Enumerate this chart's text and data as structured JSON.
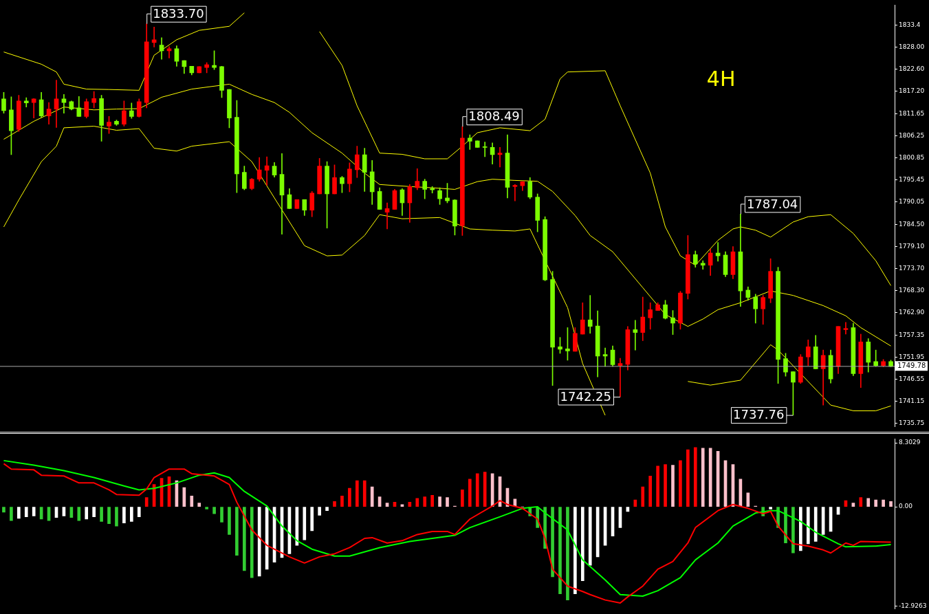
{
  "chart_data": [
    {
      "type": "candlestick",
      "categories": [
        null,
        null,
        null,
        null,
        null,
        null,
        null,
        null,
        null,
        null,
        null,
        null,
        null,
        null,
        null,
        null,
        null,
        null,
        null,
        null,
        null,
        null,
        null,
        null,
        null,
        null,
        null,
        null,
        null,
        null,
        null,
        null,
        null,
        null,
        null,
        null,
        null,
        null,
        null,
        null,
        null,
        null,
        null,
        null,
        null,
        null,
        null,
        null,
        null,
        null,
        null,
        null,
        null,
        null,
        null,
        null,
        null,
        null,
        null,
        null,
        null,
        null,
        null,
        null,
        null,
        null,
        null,
        null,
        null,
        null,
        null,
        null,
        null,
        null,
        null,
        null,
        null,
        null,
        null,
        null,
        null,
        null,
        null,
        null,
        null,
        null,
        null,
        null,
        null,
        null,
        null,
        null,
        null,
        null,
        null,
        null,
        null,
        null,
        null,
        null,
        null,
        null,
        null,
        null,
        null,
        null,
        null,
        null,
        null,
        null,
        null,
        null,
        null,
        null,
        null,
        null,
        null,
        null,
        null
      ],
      "ohlc": [
        [
          1815.3,
          1816.9,
          1811.8,
          1812.4
        ],
        [
          1812.6,
          1815.8,
          1801.6,
          1807.5
        ],
        [
          1807.8,
          1816.2,
          1807.3,
          1814.8
        ],
        [
          1814.8,
          1815.6,
          1813.3,
          1814.3
        ],
        [
          1814.4,
          1815.4,
          1810.6,
          1815.3
        ],
        [
          1815.1,
          1816.9,
          1810.8,
          1811.1
        ],
        [
          1811.1,
          1814.4,
          1809.1,
          1812.8
        ],
        [
          1812.8,
          1819.9,
          1808.3,
          1815.3
        ],
        [
          1815.3,
          1816.4,
          1811.8,
          1814.4
        ],
        [
          1814.6,
          1814.8,
          1812.6,
          1812.8
        ],
        [
          1813.1,
          1815.9,
          1811.0,
          1811.0
        ],
        [
          1811.0,
          1815.3,
          1810.6,
          1814.6
        ],
        [
          1814.4,
          1817.1,
          1813.1,
          1815.4
        ],
        [
          1815.4,
          1816.2,
          1804.9,
          1808.8
        ],
        [
          1808.6,
          1811.0,
          1806.8,
          1809.6
        ],
        [
          1809.8,
          1810.1,
          1808.8,
          1809.1
        ],
        [
          1809.1,
          1814.8,
          1808.6,
          1812.4
        ],
        [
          1812.4,
          1814.3,
          1810.5,
          1811.0
        ],
        [
          1811.0,
          1815.3,
          1810.8,
          1814.6
        ],
        [
          1814.4,
          1833.7,
          1813.1,
          1829.3
        ],
        [
          1829.1,
          1832.9,
          1828.0,
          1829.8
        ],
        [
          1828.5,
          1830.3,
          1825.0,
          1827.1
        ],
        [
          1827.1,
          1828.1,
          1825.3,
          1827.6
        ],
        [
          1827.6,
          1828.3,
          1823.3,
          1824.5
        ],
        [
          1824.7,
          1824.7,
          1821.5,
          1823.2
        ],
        [
          1823.3,
          1823.3,
          1821.2,
          1821.7
        ],
        [
          1821.7,
          1823.2,
          1821.7,
          1823.2
        ],
        [
          1823.0,
          1824.2,
          1821.7,
          1823.7
        ],
        [
          1823.5,
          1827.1,
          1822.5,
          1823.0
        ],
        [
          1823.2,
          1823.3,
          1815.6,
          1817.4
        ],
        [
          1817.6,
          1817.6,
          1808.2,
          1810.6
        ],
        [
          1810.8,
          1814.9,
          1792.3,
          1796.9
        ],
        [
          1797.3,
          1798.8,
          1793.0,
          1793.3
        ],
        [
          1793.3,
          1795.8,
          1793.0,
          1795.6
        ],
        [
          1795.6,
          1800.9,
          1795.1,
          1797.9
        ],
        [
          1797.8,
          1801.1,
          1794.1,
          1798.9
        ],
        [
          1798.8,
          1799.7,
          1796.1,
          1796.6
        ],
        [
          1796.8,
          1801.9,
          1782.1,
          1791.7
        ],
        [
          1791.8,
          1793.3,
          1788.4,
          1788.4
        ],
        [
          1788.4,
          1790.6,
          1788.4,
          1790.6
        ],
        [
          1790.6,
          1790.6,
          1786.7,
          1788.0
        ],
        [
          1788.0,
          1792.6,
          1786.4,
          1792.2
        ],
        [
          1792.0,
          1800.7,
          1792.0,
          1798.8
        ],
        [
          1798.8,
          1799.9,
          1783.6,
          1792.0
        ],
        [
          1792.0,
          1799.1,
          1792.0,
          1796.0
        ],
        [
          1796.0,
          1796.3,
          1792.3,
          1794.5
        ],
        [
          1794.5,
          1799.6,
          1792.5,
          1798.1
        ],
        [
          1797.9,
          1803.7,
          1796.0,
          1801.6
        ],
        [
          1801.6,
          1803.2,
          1792.6,
          1797.3
        ],
        [
          1797.4,
          1800.2,
          1789.4,
          1792.5
        ],
        [
          1792.6,
          1793.5,
          1788.2,
          1788.2
        ],
        [
          1787.5,
          1789.8,
          1783.4,
          1788.4
        ],
        [
          1788.2,
          1793.1,
          1788.2,
          1792.8
        ],
        [
          1793.0,
          1793.3,
          1786.7,
          1789.8
        ],
        [
          1789.8,
          1794.3,
          1785.0,
          1793.8
        ],
        [
          1793.5,
          1798.2,
          1793.0,
          1795.1
        ],
        [
          1795.1,
          1795.6,
          1790.8,
          1793.1
        ],
        [
          1793.3,
          1793.8,
          1792.2,
          1793.0
        ],
        [
          1792.8,
          1793.5,
          1789.4,
          1790.8
        ],
        [
          1791.0,
          1794.6,
          1789.8,
          1790.3
        ],
        [
          1790.5,
          1790.6,
          1781.9,
          1784.1
        ],
        [
          1784.2,
          1808.49,
          1781.8,
          1805.7
        ],
        [
          1805.7,
          1806.5,
          1802.9,
          1804.9
        ],
        [
          1805.0,
          1805.0,
          1803.4,
          1803.4
        ],
        [
          1803.5,
          1804.7,
          1801.1,
          1803.4
        ],
        [
          1803.4,
          1804.5,
          1799.3,
          1801.6
        ],
        [
          1801.6,
          1803.4,
          1798.6,
          1802.0
        ],
        [
          1802.0,
          1806.5,
          1791.0,
          1793.6
        ],
        [
          1793.8,
          1794.3,
          1790.3,
          1794.1
        ],
        [
          1794.0,
          1795.0,
          1792.8,
          1795.0
        ],
        [
          1795.0,
          1796.0,
          1790.8,
          1791.2
        ],
        [
          1791.2,
          1792.0,
          1782.7,
          1785.5
        ],
        [
          1785.7,
          1786.4,
          1770.7,
          1770.9
        ],
        [
          1771.0,
          1773.0,
          1745.0,
          1754.4
        ],
        [
          1754.5,
          1756.8,
          1752.9,
          1753.9
        ],
        [
          1754.0,
          1759.2,
          1751.2,
          1753.5
        ],
        [
          1753.4,
          1759.2,
          1753.4,
          1757.8
        ],
        [
          1757.6,
          1765.3,
          1757.6,
          1761.1
        ],
        [
          1761.1,
          1767.1,
          1757.8,
          1759.5
        ],
        [
          1759.6,
          1763.3,
          1747.1,
          1752.2
        ],
        [
          1752.6,
          1754.2,
          1749.7,
          1752.2
        ],
        [
          1753.7,
          1754.7,
          1749.7,
          1750.1
        ],
        [
          1749.9,
          1751.7,
          1742.25,
          1750.4
        ],
        [
          1750.2,
          1759.5,
          1748.8,
          1758.7
        ],
        [
          1758.7,
          1761.0,
          1753.7,
          1758.0
        ],
        [
          1758.0,
          1766.7,
          1756.0,
          1761.8
        ],
        [
          1761.6,
          1765.3,
          1758.8,
          1763.6
        ],
        [
          1763.4,
          1765.3,
          1763.4,
          1764.8
        ],
        [
          1764.8,
          1765.9,
          1761.3,
          1761.5
        ],
        [
          1761.6,
          1763.4,
          1757.5,
          1760.3
        ],
        [
          1760.3,
          1768.1,
          1758.8,
          1767.7
        ],
        [
          1767.6,
          1781.8,
          1766.2,
          1777.1
        ],
        [
          1777.1,
          1778.0,
          1774.0,
          1774.8
        ],
        [
          1775.0,
          1775.6,
          1773.5,
          1774.5
        ],
        [
          1774.5,
          1778.5,
          1772.0,
          1777.5
        ],
        [
          1777.5,
          1780.1,
          1775.5,
          1776.8
        ],
        [
          1777.0,
          1777.8,
          1771.7,
          1772.2
        ],
        [
          1772.2,
          1779.1,
          1771.2,
          1777.8
        ],
        [
          1777.8,
          1787.04,
          1764.4,
          1768.2
        ],
        [
          1768.4,
          1769.2,
          1765.9,
          1766.6
        ],
        [
          1766.7,
          1767.4,
          1760.3,
          1763.8
        ],
        [
          1763.8,
          1767.1,
          1760.0,
          1766.6
        ],
        [
          1766.4,
          1776.1,
          1765.3,
          1773.0
        ],
        [
          1773.0,
          1774.0,
          1745.5,
          1751.4
        ],
        [
          1751.6,
          1752.9,
          1747.3,
          1748.3
        ],
        [
          1748.4,
          1748.4,
          1737.76,
          1745.8
        ],
        [
          1745.8,
          1752.6,
          1745.5,
          1752.0
        ],
        [
          1752.0,
          1756.2,
          1749.9,
          1754.5
        ],
        [
          1754.5,
          1757.3,
          1749.1,
          1749.1
        ],
        [
          1749.1,
          1753.7,
          1740.2,
          1752.4
        ],
        [
          1752.4,
          1753.7,
          1745.6,
          1746.6
        ],
        [
          1749.7,
          1759.5,
          1747.9,
          1759.5
        ],
        [
          1758.7,
          1760.5,
          1757.6,
          1759.0
        ],
        [
          1759.2,
          1760.3,
          1747.4,
          1747.9
        ],
        [
          1747.9,
          1757.6,
          1744.5,
          1755.7
        ],
        [
          1755.7,
          1756.5,
          1748.3,
          1750.7
        ],
        [
          1750.9,
          1753.7,
          1749.7,
          1749.9
        ],
        [
          1749.9,
          1751.4,
          1749.6,
          1750.9
        ],
        [
          1750.9,
          1751.2,
          1749.6,
          1749.7
        ]
      ],
      "colors": [
        "#7cfc00",
        "#7cfc00",
        "#ff0000",
        "#7cfc00",
        "#ff0000",
        "#7cfc00",
        "#ff0000",
        "#ff0000",
        "#7cfc00",
        "#7cfc00",
        "#7cfc00",
        "#ff0000",
        "#ff0000",
        "#7cfc00",
        "#ff0000",
        "#7cfc00",
        "#ff0000",
        "#7cfc00",
        "#ff0000",
        "#ff0000",
        "#ff0000",
        "#7cfc00",
        "#ff0000",
        "#7cfc00",
        "#7cfc00",
        "#7cfc00",
        "#ff0000",
        "#ff0000",
        "#7cfc00",
        "#7cfc00",
        "#7cfc00",
        "#7cfc00",
        "#7cfc00",
        "#ff0000",
        "#ff0000",
        "#ff0000",
        "#7cfc00",
        "#7cfc00",
        "#7cfc00",
        "#ff0000",
        "#7cfc00",
        "#ff0000",
        "#ff0000",
        "#7cfc00",
        "#ff0000",
        "#7cfc00",
        "#ff0000",
        "#ff0000",
        "#7cfc00",
        "#7cfc00",
        "#7cfc00",
        "#ff0000",
        "#ff0000",
        "#7cfc00",
        "#ff0000",
        "#ff0000",
        "#7cfc00",
        "#7cfc00",
        "#7cfc00",
        "#7cfc00",
        "#7cfc00",
        "#ff0000",
        "#7cfc00",
        "#7cfc00",
        "#7cfc00",
        "#7cfc00",
        "#ff0000",
        "#7cfc00",
        "#ff0000",
        "#ff0000",
        "#7cfc00",
        "#7cfc00",
        "#7cfc00",
        "#7cfc00",
        "#7cfc00",
        "#7cfc00",
        "#ff0000",
        "#ff0000",
        "#7cfc00",
        "#7cfc00",
        "#7cfc00",
        "#7cfc00",
        "#ff0000",
        "#ff0000",
        "#7cfc00",
        "#ff0000",
        "#ff0000",
        "#ff0000",
        "#7cfc00",
        "#7cfc00",
        "#ff0000",
        "#ff0000",
        "#7cfc00",
        "#7cfc00",
        "#ff0000",
        "#7cfc00",
        "#7cfc00",
        "#ff0000",
        "#7cfc00",
        "#7cfc00",
        "#7cfc00",
        "#ff0000",
        "#ff0000",
        "#7cfc00",
        "#7cfc00",
        "#7cfc00",
        "#ff0000",
        "#ff0000",
        "#7cfc00",
        "#ff0000",
        "#7cfc00",
        "#ff0000",
        "#ff0000",
        "#7cfc00",
        "#ff0000",
        "#7cfc00",
        "#7cfc00",
        "#ff0000",
        "#7cfc00"
      ],
      "series": [
        {
          "type": "line",
          "color": "#ffff00",
          "values": [
            1826.8,
            null,
            null,
            null,
            null,
            1823.8,
            null,
            1821.9,
            1818.9,
            null,
            null,
            1817.7,
            null,
            null,
            1817.6,
            null,
            null,
            null,
            1817.4,
            null,
            1826.0,
            null,
            null,
            1829.8,
            null,
            null,
            1832.1,
            null,
            null,
            null,
            1833.1,
            null,
            1836.4,
            null,
            null,
            null,
            null,
            null,
            null,
            null,
            null,
            null,
            1831.8,
            null,
            null,
            1823.5,
            null,
            1813.6,
            null,
            null,
            1802.0,
            null,
            null,
            1801.7,
            null,
            null,
            1800.6,
            null,
            null,
            1800.6,
            null,
            1803.7,
            null,
            1807.0,
            null,
            null,
            1808.2,
            null,
            null,
            null,
            1807.5,
            null,
            1810.3,
            null,
            1820.2,
            1821.9,
            null,
            null,
            null,
            null,
            1822.2,
            null,
            1813.6,
            null,
            null,
            null,
            1797.1,
            null,
            1783.9,
            null,
            1776.8,
            null,
            1774.5,
            null,
            null,
            1780.6,
            null,
            1783.4,
            1783.9,
            null,
            1783.1,
            null,
            1781.4,
            null,
            null,
            1785.1,
            null,
            1786.4,
            null,
            null,
            1786.9,
            null,
            null,
            1782.3,
            null,
            null,
            1775.6,
            null,
            1769.5
          ]
        },
        {
          "type": "line",
          "color": "#ffff00",
          "values": [
            1805.4,
            null,
            null,
            null,
            1809.8,
            null,
            null,
            null,
            1813.3,
            null,
            null,
            null,
            1812.6,
            null,
            null,
            1812.8,
            null,
            null,
            1812.9,
            null,
            null,
            1815.7,
            null,
            null,
            null,
            1817.7,
            null,
            null,
            null,
            null,
            1818.9,
            null,
            null,
            1816.4,
            null,
            null,
            1814.4,
            null,
            1812.0,
            null,
            null,
            1807.0,
            null,
            null,
            null,
            1802.0,
            null,
            null,
            1797.1,
            null,
            1794.3,
            null,
            null,
            null,
            1793.8,
            null,
            null,
            1793.5,
            null,
            null,
            1793.1,
            null,
            null,
            1795.0,
            null,
            1795.6,
            null,
            null,
            1795.3,
            null,
            null,
            1795.1,
            null,
            1792.6,
            null,
            null,
            1786.7,
            null,
            1781.8,
            null,
            null,
            1777.8,
            null,
            null,
            null,
            1769.0,
            null,
            null,
            1762.4,
            null,
            null,
            1759.5,
            null,
            1761.3,
            null,
            1763.6,
            null,
            null,
            1765.3,
            null,
            null,
            null,
            1768.2,
            null,
            null,
            1767.1,
            null,
            null,
            null,
            1764.6,
            null,
            null,
            1762.1,
            null,
            1759.2,
            null,
            null,
            null,
            1754.7
          ]
        },
        {
          "type": "line",
          "color": "#ffff00",
          "values": [
            1783.9,
            null,
            1790.5,
            null,
            null,
            1799.9,
            null,
            1803.7,
            1808.2,
            null,
            null,
            null,
            1808.6,
            null,
            null,
            1807.6,
            null,
            null,
            1808.0,
            null,
            1803.2,
            null,
            null,
            1802.5,
            null,
            1803.7,
            null,
            null,
            null,
            null,
            1804.8,
            null,
            null,
            1799.9,
            null,
            null,
            1791.0,
            null,
            null,
            null,
            1779.3,
            null,
            null,
            1776.8,
            null,
            1777.0,
            null,
            null,
            1781.8,
            null,
            1786.9,
            null,
            null,
            1785.9,
            null,
            null,
            null,
            null,
            1786.2,
            null,
            null,
            null,
            1783.4,
            null,
            null,
            1783.1,
            null,
            null,
            1782.9,
            null,
            1783.4,
            null,
            null,
            null,
            null,
            1764.1,
            null,
            1750.4,
            null,
            null,
            1737.7,
            null,
            null,
            null,
            null,
            null,
            null,
            null,
            null,
            null,
            null,
            1746.0,
            null,
            null,
            1745.1,
            null,
            null,
            null,
            1746.3,
            null,
            null,
            null,
            1755.0,
            1753.7,
            null,
            null,
            null,
            null,
            null,
            null,
            1740.2,
            null,
            null,
            1738.8,
            null,
            null,
            1738.8,
            null,
            1740.0
          ]
        }
      ],
      "ylim": [
        1734.9,
        1838.3
      ],
      "yticks": [
        1735.75,
        1741.15,
        1746.55,
        1751.95,
        1757.35,
        {
          "value": 1762.9,
          "label": "1762.90"
        },
        {
          "value": 1768.3,
          "label": "1768.30"
        },
        {
          "value": 1773.7,
          "label": "1773.70"
        },
        {
          "value": 1779.1,
          "label": "1779.10"
        },
        {
          "value": 1784.5,
          "label": "1784.50"
        },
        1790.05,
        1795.45,
        1800.85,
        1806.25,
        1811.65,
        {
          "value": 1817.2,
          "label": "1817.20"
        },
        {
          "value": 1822.6,
          "label": "1822.60"
        },
        {
          "value": 1828,
          "label": "1828.00"
        },
        1833.4
      ],
      "ref_lines": [
        {
          "axis": "y",
          "value": 1749.78,
          "label": "1749.78",
          "color": "#a9a9a9"
        }
      ],
      "annotations": [
        "1833.70",
        "1808.49",
        "1787.04",
        "1742.25",
        "1737.76",
        "4H"
      ],
      "tick_labels": "y"
    },
    {
      "type": "bar",
      "categories": [
        null,
        null,
        null,
        null,
        null,
        null,
        null,
        null,
        null,
        null,
        null,
        null,
        null,
        null,
        null,
        null,
        null,
        null,
        null,
        null,
        null,
        null,
        null,
        null,
        null,
        null,
        null,
        null,
        null,
        null,
        null,
        null,
        null,
        null,
        null,
        null,
        null,
        null,
        null,
        null,
        null,
        null,
        null,
        null,
        null,
        null,
        null,
        null,
        null,
        null,
        null,
        null,
        null,
        null,
        null,
        null,
        null,
        null,
        null,
        null,
        null,
        null,
        null,
        null,
        null,
        null,
        null,
        null,
        null,
        null,
        null,
        null,
        null,
        null,
        null,
        null,
        null,
        null,
        null,
        null,
        null,
        null,
        null,
        null,
        null,
        null,
        null,
        null,
        null,
        null,
        null,
        null,
        null,
        null,
        null,
        null,
        null,
        null,
        null,
        null,
        null,
        null,
        null,
        null,
        null,
        null,
        null,
        null,
        null,
        null,
        null,
        null,
        null,
        null,
        null,
        null,
        null,
        null,
        null
      ],
      "series": [
        {
          "type": "bar",
          "values": [
            -0.7,
            -1.8,
            -1.5,
            -1.3,
            -1.2,
            -1.6,
            -1.8,
            -1.4,
            -1.2,
            -1.4,
            -1.8,
            -1.6,
            -1.3,
            -1.9,
            -2.2,
            -2.5,
            -2.1,
            -1.9,
            -1.3,
            1.2,
            2.9,
            3.7,
            3.9,
            3.4,
            2.5,
            1.4,
            0.5,
            -0.3,
            -0.9,
            -2.0,
            -3.6,
            -6.3,
            -8.3,
            -9.2,
            -9.0,
            -8.1,
            -7.2,
            -6.6,
            -6.1,
            -5.0,
            -4.3,
            -3.1,
            -1.1,
            -0.5,
            0.7,
            1.4,
            2.4,
            3.4,
            3.4,
            2.6,
            1.3,
            0.5,
            0.6,
            0.3,
            0.6,
            1.1,
            1.3,
            1.5,
            1.3,
            1.2,
            0.1,
            2.2,
            3.6,
            4.3,
            4.5,
            4.3,
            3.9,
            2.4,
            1.0,
            0,
            -1.2,
            -2.7,
            -5.4,
            -9.1,
            -11.3,
            -12.1,
            -11.3,
            -9.6,
            -7.6,
            -6.5,
            -5.0,
            -3.8,
            -2.7,
            -0.6,
            0.9,
            2.6,
            4.0,
            5.3,
            5.5,
            5.4,
            6.0,
            7.4,
            7.7,
            7.6,
            7.6,
            7.2,
            6.0,
            5.5,
            3.6,
            1.8,
            0.1,
            -1.2,
            -0.3,
            -2.7,
            -4.7,
            -6.0,
            -5.7,
            -4.8,
            -4.5,
            -3.6,
            -3.2,
            -1.0,
            0.8,
            0.5,
            1.2,
            1.1,
            0.9,
            0.9,
            0.7
          ],
          "colors": [
            "#32cd32",
            "#32cd32",
            "#ffffff",
            "#ffffff",
            "#ffffff",
            "#32cd32",
            "#32cd32",
            "#ffffff",
            "#ffffff",
            "#32cd32",
            "#32cd32",
            "#ffffff",
            "#ffffff",
            "#32cd32",
            "#32cd32",
            "#32cd32",
            "#ffffff",
            "#ffffff",
            "#ffffff",
            "#ff0000",
            "#ff0000",
            "#ff0000",
            "#ff0000",
            "#ffc0cb",
            "#ffc0cb",
            "#ffc0cb",
            "#ffc0cb",
            "#32cd32",
            "#32cd32",
            "#32cd32",
            "#32cd32",
            "#32cd32",
            "#32cd32",
            "#32cd32",
            "#ffffff",
            "#ffffff",
            "#ffffff",
            "#ffffff",
            "#ffffff",
            "#ffffff",
            "#ffffff",
            "#ffffff",
            "#ffffff",
            "#ffffff",
            "#ff0000",
            "#ff0000",
            "#ff0000",
            "#ff0000",
            "#ff0000",
            "#ffc0cb",
            "#ffc0cb",
            "#ffc0cb",
            "#ff0000",
            "#ffc0cb",
            "#ff0000",
            "#ff0000",
            "#ff0000",
            "#ff0000",
            "#ffc0cb",
            "#ffc0cb",
            "#ffc0cb",
            "#ff0000",
            "#ff0000",
            "#ff0000",
            "#ff0000",
            "#ffc0cb",
            "#ffc0cb",
            "#ffc0cb",
            "#ffc0cb",
            "#ffc0cb",
            "#32cd32",
            "#32cd32",
            "#32cd32",
            "#32cd32",
            "#32cd32",
            "#32cd32",
            "#ffffff",
            "#ffffff",
            "#ffffff",
            "#ffffff",
            "#ffffff",
            "#ffffff",
            "#ffffff",
            "#ffffff",
            "#ff0000",
            "#ff0000",
            "#ff0000",
            "#ff0000",
            "#ff0000",
            "#ffc0cb",
            "#ff0000",
            "#ff0000",
            "#ff0000",
            "#ffc0cb",
            "#ffc0cb",
            "#ffc0cb",
            "#ffc0cb",
            "#ffc0cb",
            "#ffc0cb",
            "#ffc0cb",
            "#ffc0cb",
            "#32cd32",
            "#ffffff",
            "#32cd32",
            "#32cd32",
            "#32cd32",
            "#ffffff",
            "#ffffff",
            "#ffffff",
            "#ffffff",
            "#ffffff",
            "#ffffff",
            "#ff0000",
            "#ffc0cb",
            "#ff0000",
            "#ffc0cb",
            "#ffc0cb",
            "#ffc0cb",
            "#ffc0cb"
          ]
        },
        {
          "type": "line",
          "color": "#ff0000",
          "values": [
            5.6,
            4.9,
            null,
            null,
            4.8,
            4.1,
            null,
            null,
            4.0,
            null,
            3.1,
            null,
            3.1,
            null,
            2.2,
            1.6,
            null,
            null,
            1.5,
            2.3,
            3.8,
            null,
            4.9,
            null,
            4.9,
            4.3,
            null,
            null,
            4.0,
            null,
            2.9,
            0.6,
            null,
            -3.0,
            null,
            -5.0,
            null,
            null,
            -6.5,
            null,
            -7.3,
            null,
            -6.5,
            null,
            -6.1,
            null,
            -5.3,
            null,
            -4.1,
            -4.0,
            null,
            -4.7,
            null,
            -4.4,
            null,
            -3.6,
            null,
            -3.2,
            null,
            -3.2,
            -3.6,
            null,
            -1.6,
            null,
            null,
            0.1,
            0.8,
            0.3,
            null,
            -0.2,
            null,
            -1.6,
            -4.1,
            -8.1,
            null,
            -10.3,
            null,
            -11.0,
            -11.4,
            null,
            -12.1,
            null,
            -12.5,
            -11.7,
            null,
            -10.3,
            null,
            -8.1,
            null,
            -7.1,
            null,
            -4.7,
            -2.7,
            null,
            null,
            -0.5,
            null,
            0.3,
            null,
            -0.2,
            null,
            -0.9,
            -0.6,
            -2.5,
            null,
            -4.8,
            null,
            -5.1,
            null,
            -5.6,
            -6.0,
            null,
            -4.7,
            -5.0,
            -4.5,
            null,
            null,
            null,
            -4.6
          ]
        },
        {
          "type": "line",
          "color": "#00ff00",
          "values": [
            6.0,
            null,
            null,
            null,
            5.4,
            null,
            null,
            null,
            4.7,
            null,
            null,
            null,
            3.8,
            null,
            null,
            null,
            2.7,
            null,
            2.2,
            null,
            2.4,
            null,
            null,
            3.1,
            null,
            null,
            4.1,
            null,
            4.4,
            null,
            3.8,
            null,
            2.0,
            null,
            null,
            0.1,
            null,
            -2.5,
            null,
            -4.4,
            null,
            -5.5,
            null,
            null,
            -6.4,
            null,
            -6.4,
            null,
            null,
            null,
            -5.3,
            null,
            null,
            null,
            -4.5,
            null,
            null,
            -4.1,
            null,
            null,
            -3.7,
            null,
            -2.7,
            null,
            null,
            null,
            -1.3,
            null,
            null,
            -0.2,
            null,
            0.0,
            -0.8,
            null,
            null,
            -3.0,
            null,
            -6.9,
            null,
            null,
            -9.5,
            null,
            -11.4,
            null,
            null,
            -11.6,
            null,
            -10.9,
            null,
            null,
            -9.2,
            null,
            -6.9,
            null,
            null,
            -4.7,
            null,
            -2.5,
            null,
            null,
            -0.8,
            null,
            -0.5,
            -0.5,
            null,
            null,
            -1.9,
            null,
            -3.3,
            null,
            null,
            -4.8,
            -5.2,
            null,
            null,
            null,
            -5.1,
            null,
            -4.9
          ]
        }
      ],
      "ylim": [
        -13.26,
        8.81
      ],
      "yticks": [
        -12.9263,
        {
          "value": 0,
          "label": "0.00"
        },
        8.3029
      ],
      "tick_labels": "y"
    }
  ]
}
